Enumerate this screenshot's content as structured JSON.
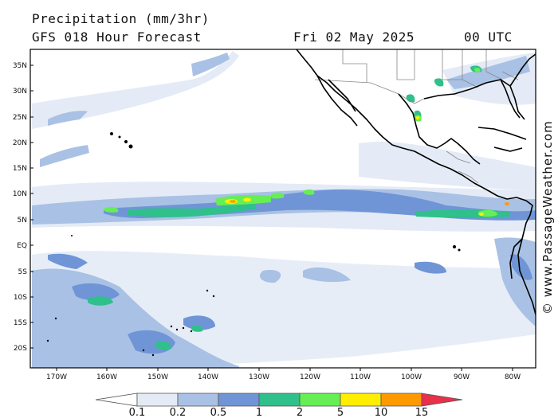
{
  "header": {
    "title": "Precipitation (mm/3hr)",
    "subtitle": "GFS 018 Hour Forecast",
    "date": "Fri 02 May 2025",
    "time": "00 UTC"
  },
  "credit": "© www.PassageWeather.com",
  "axes": {
    "lat_labels": [
      "35N",
      "30N",
      "25N",
      "20N",
      "15N",
      "10N",
      "5N",
      "EQ",
      "5S",
      "10S",
      "15S",
      "20S"
    ],
    "lon_labels": [
      "170W",
      "160W",
      "150W",
      "140W",
      "130W",
      "120W",
      "110W",
      "100W",
      "90W",
      "80W"
    ]
  },
  "legend": {
    "labels": [
      "0.1",
      "0.2",
      "0.5",
      "1",
      "2",
      "5",
      "10",
      "15"
    ],
    "colors": [
      "#ffffff",
      "#e4ebf6",
      "#a9c1e4",
      "#6f95d6",
      "#2fc08b",
      "#66ee55",
      "#ffee00",
      "#ff9900",
      "#e8304a"
    ]
  },
  "colors": {
    "very_light": "#e4ebf6",
    "light": "#a9c1e4",
    "medium": "#6f95d6",
    "teal": "#2fc08b",
    "green": "#66ee55",
    "yellow": "#ffee00",
    "orange": "#ff9900",
    "coast": "#000000",
    "border": "#888888"
  }
}
